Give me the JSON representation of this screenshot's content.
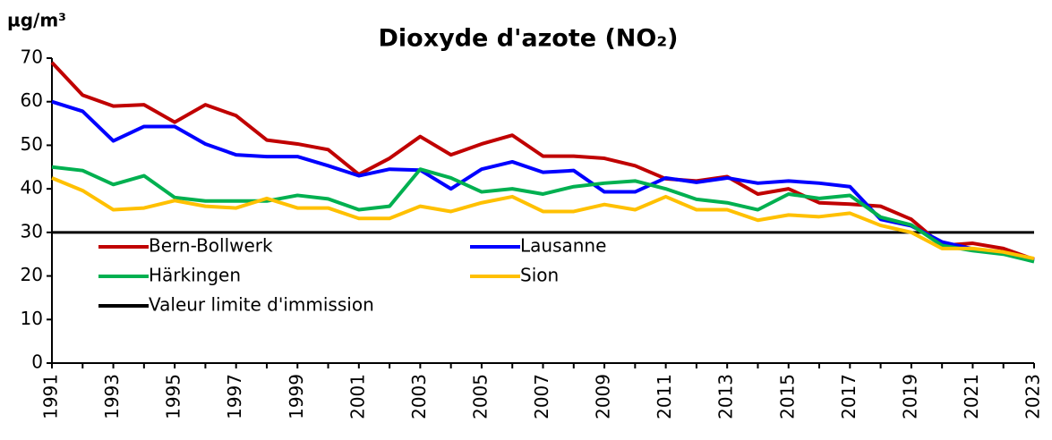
{
  "chart_data": {
    "type": "line",
    "title": "Dioxyde d'azote (NO₂)",
    "y_label": "µg/m³",
    "categories": [
      "1991",
      null,
      "1993",
      null,
      "1995",
      null,
      "1997",
      null,
      "1999",
      null,
      "2001",
      null,
      "2003",
      null,
      "2005",
      null,
      "2007",
      null,
      "2009",
      null,
      "2011",
      null,
      "2013",
      null,
      "2015",
      null,
      "2017",
      null,
      "2019",
      null,
      "2021",
      null,
      "2023"
    ],
    "series": [
      {
        "name": "Bern-Bollwerk",
        "color": "#c00000",
        "values": [
          69,
          61.5,
          59,
          59.3,
          55.3,
          59.3,
          56.8,
          51.2,
          50.3,
          49,
          43.3,
          47,
          52,
          47.8,
          50.3,
          52.3,
          47.5,
          47.5,
          47,
          45.3,
          42.3,
          41.8,
          42.8,
          38.8,
          40,
          36.8,
          36.5,
          36,
          33,
          27,
          27.5,
          26.3,
          23.8
        ]
      },
      {
        "name": "Lausanne",
        "color": "#0000ff",
        "values": [
          60,
          57.8,
          51,
          54.3,
          54.3,
          50.3,
          47.8,
          47.4,
          47.4,
          45.3,
          43,
          44.5,
          44.3,
          40,
          44.5,
          46.2,
          43.8,
          44.2,
          39.3,
          39.3,
          42.5,
          41.5,
          42.5,
          41.3,
          41.8,
          41.3,
          40.5,
          33,
          31.5,
          27.8,
          26.2,
          25.2,
          23.5
        ]
      },
      {
        "name": "Härkingen",
        "color": "#00b050",
        "values": [
          45,
          44.2,
          41,
          43,
          38,
          37.2,
          37.2,
          37.2,
          38.5,
          37.7,
          35.2,
          36,
          44.5,
          42.5,
          39.3,
          40,
          38.8,
          40.5,
          41.3,
          41.8,
          40,
          37.6,
          36.8,
          35.2,
          38.8,
          37.8,
          38.5,
          33.5,
          31.7,
          27,
          25.8,
          25,
          23.3
        ]
      },
      {
        "name": "Sion",
        "color": "#ffc000",
        "values": [
          42.5,
          39.6,
          35.2,
          35.6,
          37.3,
          36,
          35.6,
          37.8,
          35.6,
          35.6,
          33.2,
          33.2,
          36,
          34.8,
          36.8,
          38.2,
          34.8,
          34.8,
          36.4,
          35.2,
          38.2,
          35.2,
          35.2,
          32.8,
          34,
          33.6,
          34.4,
          31.6,
          30,
          26.3,
          26.3,
          25.5,
          24
        ]
      }
    ],
    "limit": {
      "name": "Valeur limite d'immission",
      "value": 30,
      "color": "#000000"
    },
    "ylim": [
      0,
      70
    ],
    "yticks": [
      0,
      10,
      20,
      30,
      40,
      50,
      60,
      70
    ]
  }
}
